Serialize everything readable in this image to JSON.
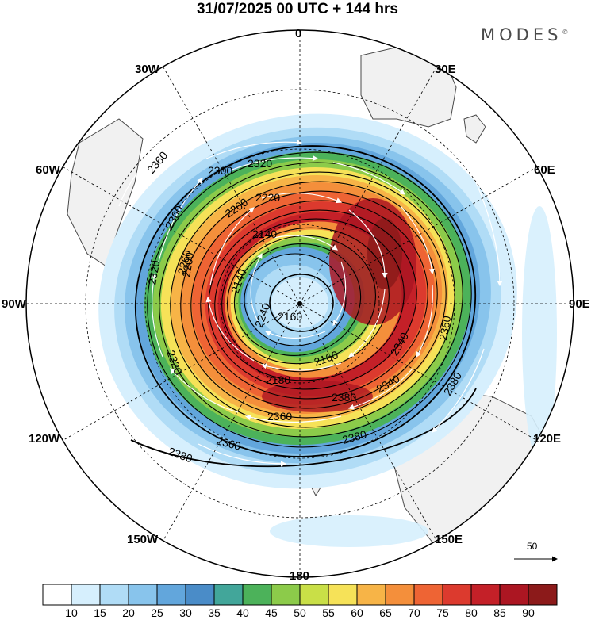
{
  "header": {
    "title": "31/07/2025  00 UTC  + 144 hrs",
    "brand": "MODES",
    "brand_mark": "©"
  },
  "map": {
    "projection": "polar-stereographic",
    "hemisphere": "southern",
    "lon_labels": {
      "top": "0",
      "top_right": "30E",
      "upper_right": "60E",
      "right": "90E",
      "lower_right": "120E",
      "bottom_right": "150E",
      "bottom": "180",
      "bottom_left": "150W",
      "lower_left": "120W",
      "left": "90W",
      "upper_left": "60W",
      "top_left": "30W"
    },
    "contour_labels": [
      "2360",
      "2300",
      "2320",
      "2220",
      "2200",
      "2140",
      "2260",
      "2200",
      "2140",
      "2320",
      "2300",
      "2320",
      "2240",
      "2160",
      "2180",
      "2160",
      "2340",
      "2360",
      "2380",
      "2380",
      "2340",
      "2360",
      "2380",
      "2360",
      "2380"
    ],
    "vector_reference": {
      "value": "50"
    }
  },
  "colorbar": {
    "ticks": [
      "10",
      "15",
      "20",
      "25",
      "30",
      "35",
      "40",
      "45",
      "50",
      "55",
      "60",
      "65",
      "70",
      "75",
      "80",
      "85",
      "90"
    ],
    "colors": [
      "#ffffff",
      "#d6effd",
      "#b0dcf6",
      "#88c4ec",
      "#62a6dc",
      "#4a8cc8",
      "#42a69a",
      "#4cb25a",
      "#8ccb4a",
      "#c9df47",
      "#f6e258",
      "#f7b447",
      "#f48f3b",
      "#ee6434",
      "#dc3a2e",
      "#c42028",
      "#ac1622",
      "#8c1a1a"
    ]
  },
  "colors": {
    "land": "#f1f1f1",
    "coast": "#4a4a4a"
  }
}
